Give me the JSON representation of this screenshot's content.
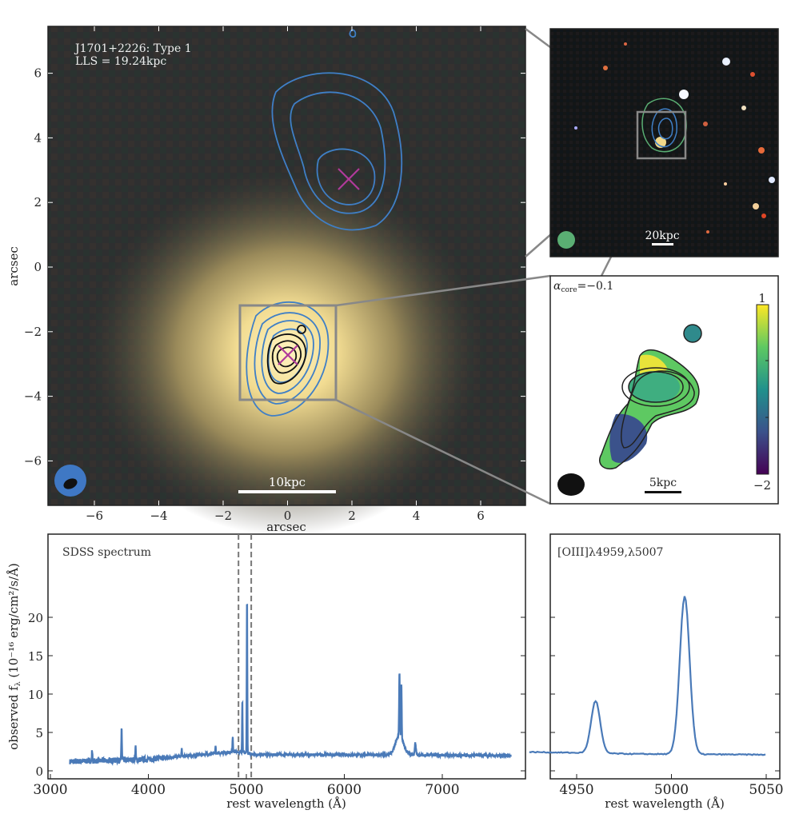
{
  "colors": {
    "spectrum": "#4a7ab8",
    "contour_blue": "#3f7fc6",
    "marker": "#b03a9a",
    "box": "#888888",
    "beam_green": "#5aae73",
    "beam_blue": "#3f78c4"
  },
  "main_panel": {
    "title_line1": "J1701+2226: Type 1",
    "title_line2": "LLS = 19.24kpc",
    "scalebar_label": "10kpc",
    "xlabel": "arcsec",
    "ylabel": "arcsec",
    "xticks": [
      "−6",
      "−4",
      "−2",
      "0",
      "2",
      "4",
      "6"
    ],
    "yticks": [
      "6",
      "4",
      "2",
      "0",
      "−2",
      "−4",
      "−6"
    ],
    "xtick_values": [
      -6,
      -4,
      -2,
      0,
      2,
      4,
      6
    ],
    "ytick_values": [
      6,
      4,
      2,
      0,
      -2,
      -4,
      -6
    ]
  },
  "inset_top": {
    "scalebar_label": "20kpc"
  },
  "inset_alpha": {
    "label_alpha": "α",
    "label_sub": "core",
    "label_value": "=−0.1",
    "colorbar_max": "1",
    "colorbar_min": "−2",
    "scalebar_label": "5kpc"
  },
  "chart_data": [
    {
      "type": "line",
      "title": "SDSS spectrum",
      "xlabel": "rest wavelength (Å)",
      "ylabel": "observed f",
      "ylabel_sub": "λ",
      "ylabel_units": " (10⁻¹⁶ erg/cm²/s/Å)",
      "xlim": [
        3000,
        7700
      ],
      "ylim": [
        -0.5,
        24
      ],
      "xticks": [
        3000,
        4000,
        5000,
        6000,
        7000
      ],
      "yticks": [
        0,
        5,
        10,
        15,
        20
      ],
      "dashed_lines": [
        4920,
        5050
      ],
      "continuum": [
        [
          3200,
          1.2
        ],
        [
          4000,
          1.5
        ],
        [
          4800,
          2.4
        ],
        [
          4900,
          2.5
        ],
        [
          5100,
          2.1
        ],
        [
          6000,
          2.1
        ],
        [
          7700,
          2.0
        ]
      ],
      "lines": [
        [
          3426,
          1.4,
          3
        ],
        [
          3727,
          4.3,
          3
        ],
        [
          3869,
          1.8,
          3
        ],
        [
          4340,
          1.0,
          3
        ],
        [
          4686,
          0.9,
          3
        ],
        [
          4861,
          2.1,
          3
        ],
        [
          4959,
          6.8,
          3
        ],
        [
          5007,
          20.6,
          3
        ],
        [
          6563,
          8.2,
          4
        ],
        [
          6583,
          7.2,
          3
        ],
        [
          6563,
          2.5,
          40
        ],
        [
          6725,
          1.6,
          6
        ]
      ]
    },
    {
      "type": "line",
      "title": "[OIII]λ4959,λ5007",
      "xlabel": "rest wavelength (Å)",
      "xlim": [
        4920,
        5055
      ],
      "ylim": [
        -0.5,
        24
      ],
      "xticks": [
        4950,
        5000,
        5050
      ],
      "continuum": [
        [
          4925,
          2.45
        ],
        [
          4950,
          2.35
        ],
        [
          4980,
          2.2
        ],
        [
          5050,
          2.1
        ]
      ],
      "lines": [
        [
          4960,
          6.8,
          2.4
        ],
        [
          5007,
          20.6,
          2.6
        ]
      ]
    }
  ]
}
